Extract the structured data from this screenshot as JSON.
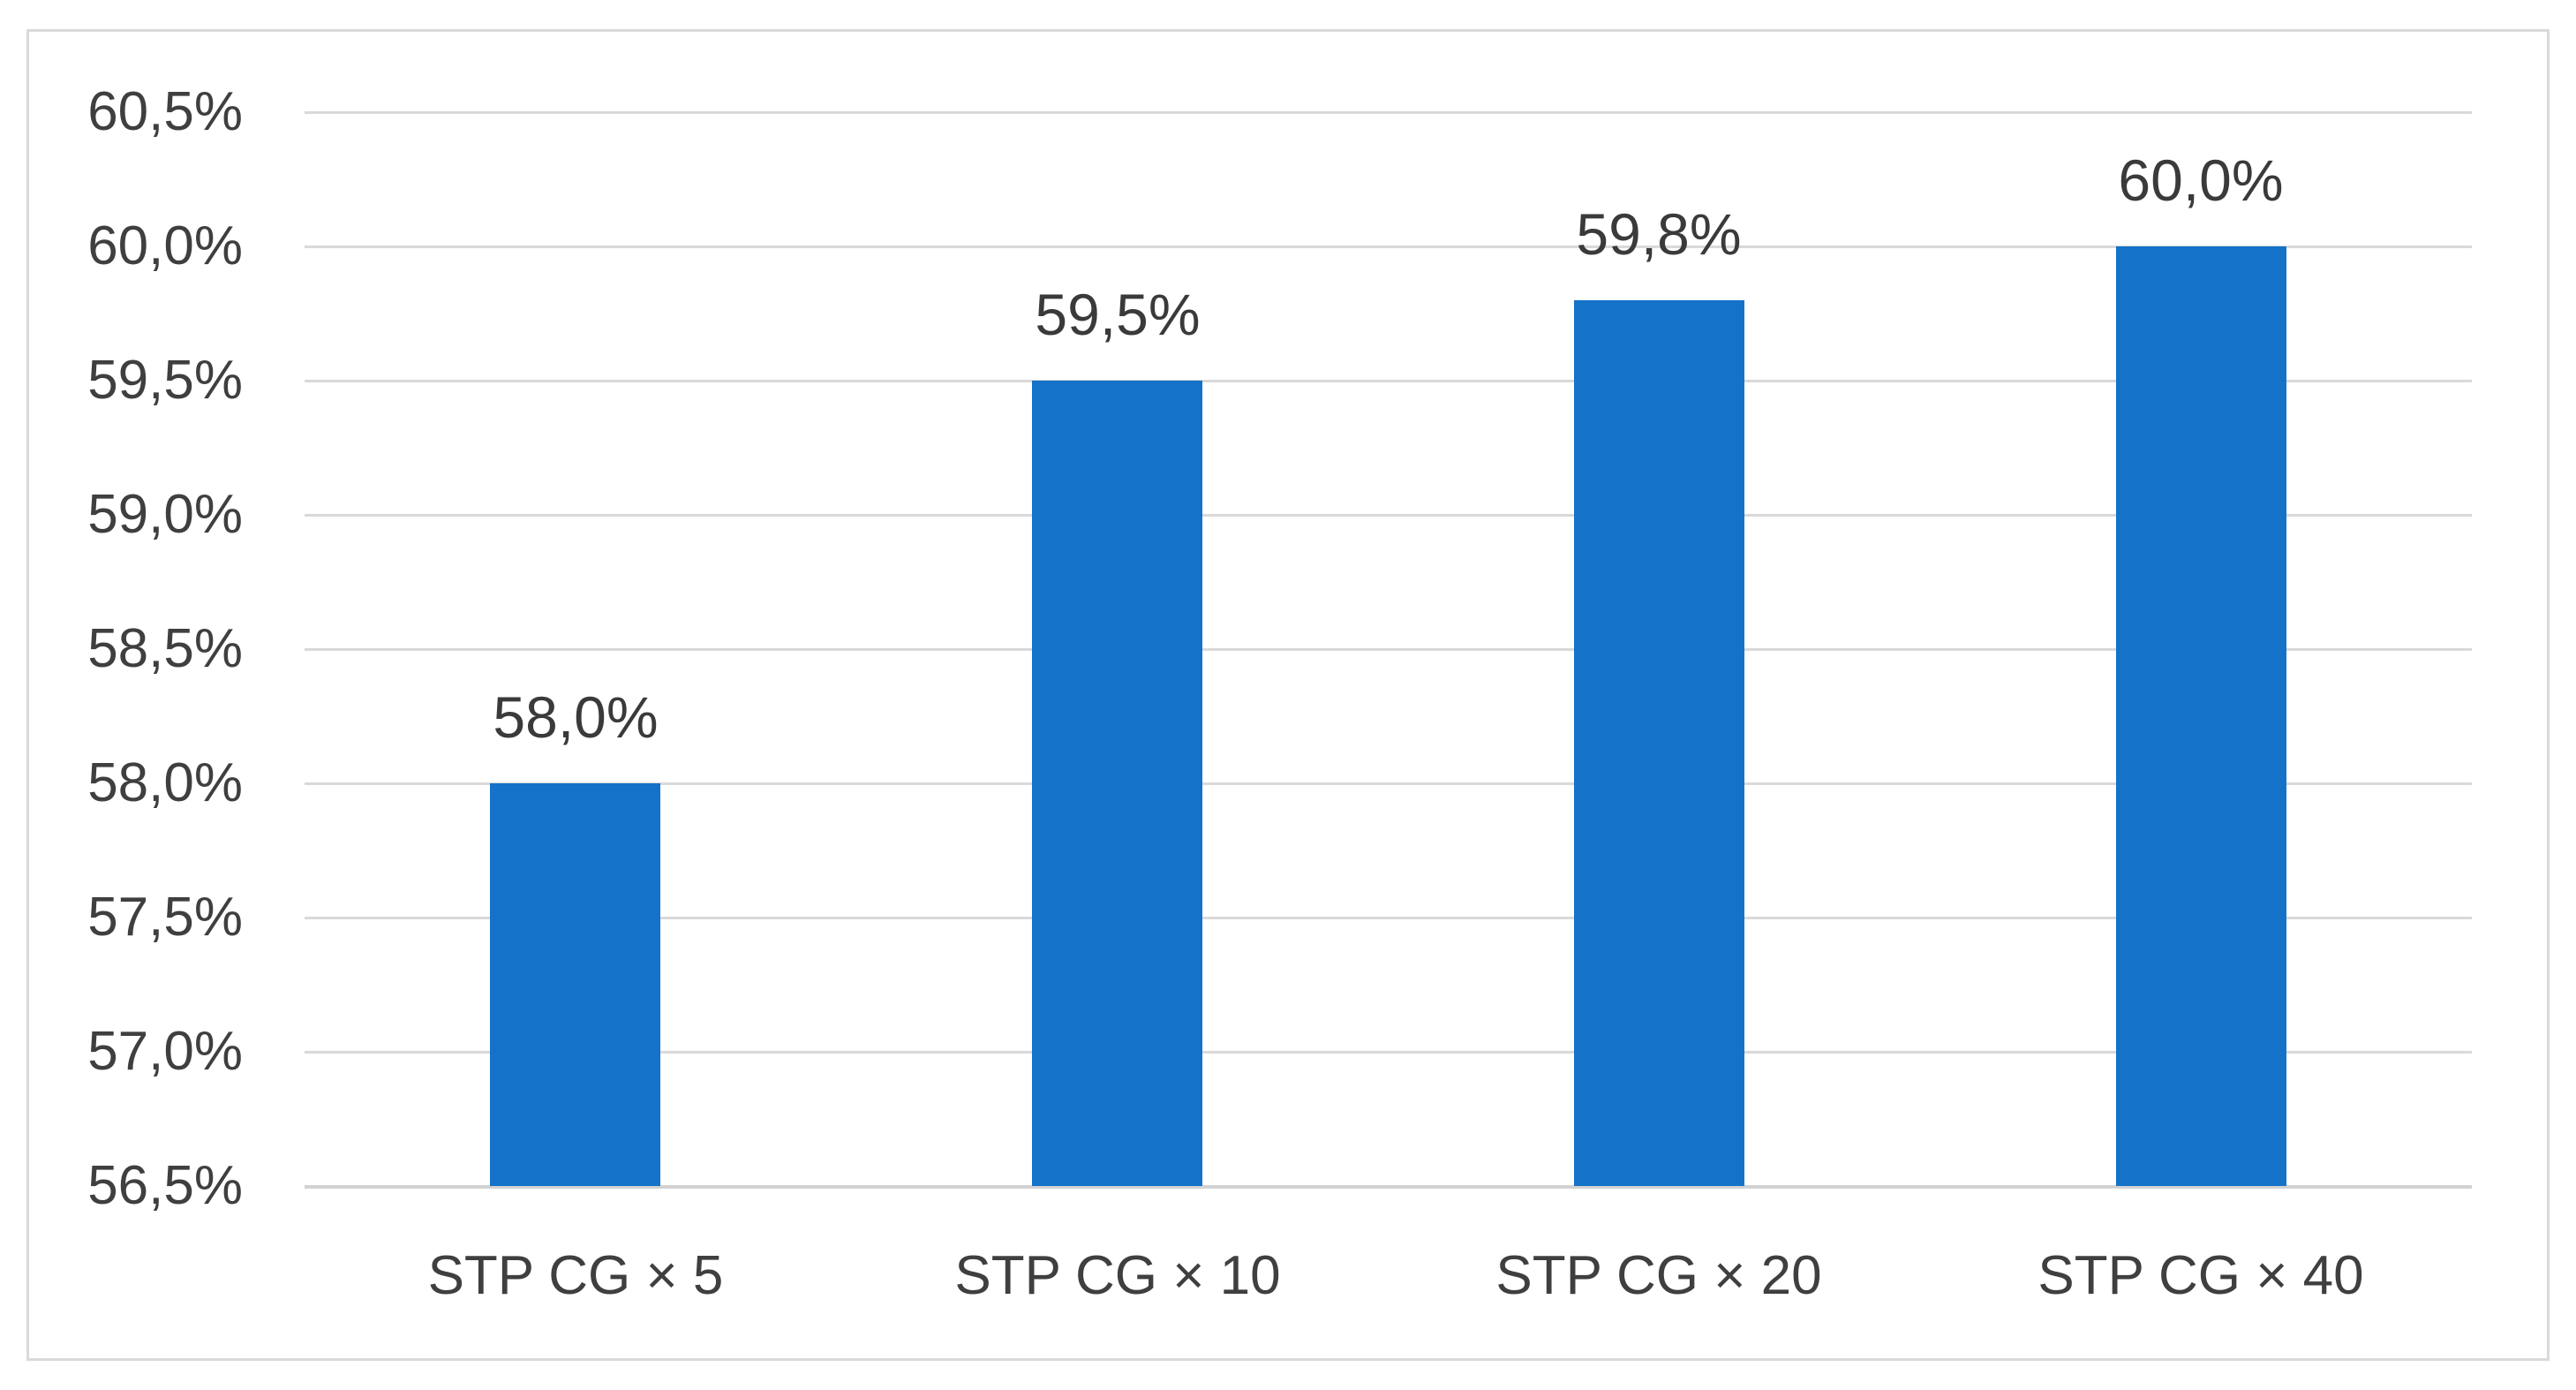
{
  "chart_data": {
    "type": "bar",
    "title": "",
    "xlabel": "",
    "ylabel": "",
    "categories": [
      "STP CG × 5",
      "STP CG × 10",
      "STP CG × 20",
      "STP CG × 40"
    ],
    "values": [
      58.0,
      59.5,
      59.8,
      60.0
    ],
    "bar_labels": [
      "58,0%",
      "59,5%",
      "59,8%",
      "60,0%"
    ],
    "y_ticks": [
      "60,5%",
      "60,0%",
      "59,5%",
      "59,0%",
      "58,5%",
      "58,0%",
      "57,5%",
      "57,0%",
      "56,5%"
    ],
    "y_tick_values": [
      60.5,
      60.0,
      59.5,
      59.0,
      58.5,
      58.0,
      57.5,
      57.0,
      56.5
    ],
    "ylim": [
      56.5,
      60.5
    ],
    "y_step": 0.5,
    "grid": "horizontal",
    "legend": "none",
    "decimal_separator": ",",
    "colors": {
      "bar": "#1572c9",
      "gridline": "#d9d9d9",
      "text": "#3f3f3f",
      "frame_border": "#d9d9d9",
      "background": "#ffffff"
    }
  }
}
